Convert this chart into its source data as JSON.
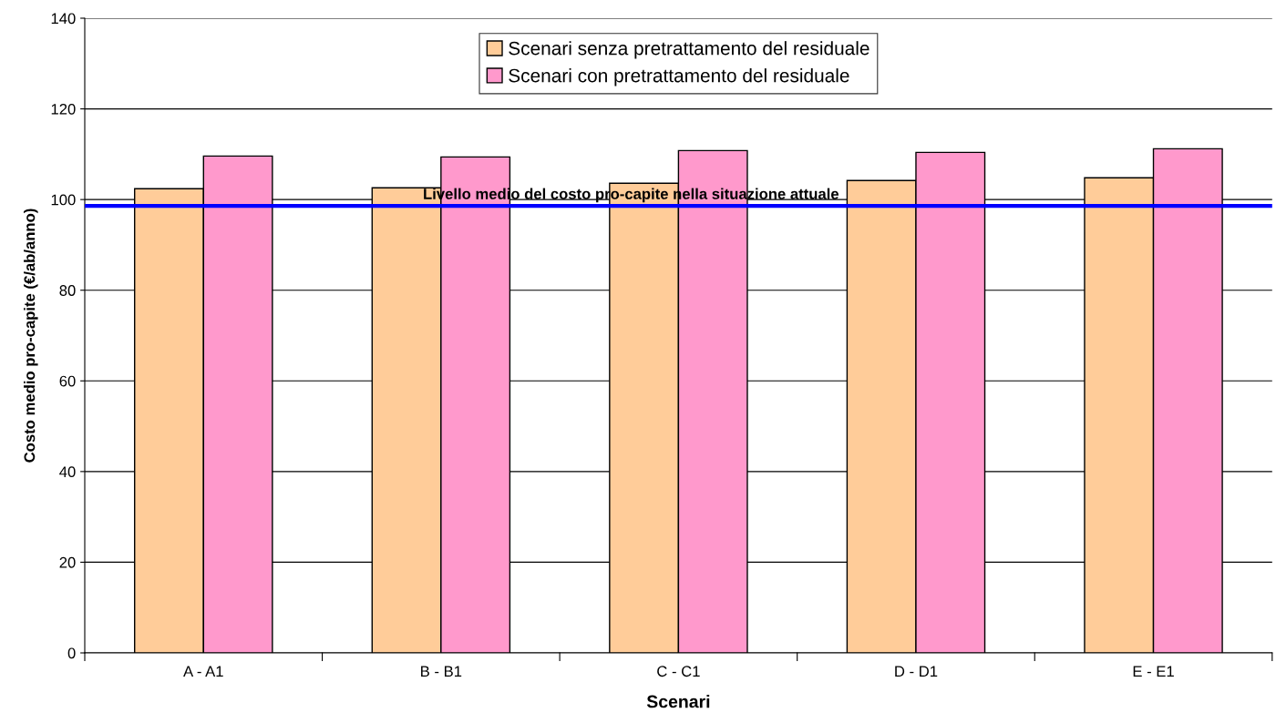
{
  "chart_data": {
    "type": "bar",
    "xlabel": "Scenari",
    "ylabel": "Costo medio pro-capite (€/ab/anno)",
    "categories": [
      "A - A1",
      "B - B1",
      "C - C1",
      "D - D1",
      "E - E1"
    ],
    "series": [
      {
        "name": "Scenari senza pretrattamento del residuale",
        "color": "#ffcc99",
        "values": [
          102.4,
          102.6,
          103.6,
          104.2,
          104.8
        ]
      },
      {
        "name": "Scenari con pretrattamento del residuale",
        "color": "#ff99cc",
        "values": [
          109.6,
          109.4,
          110.8,
          110.4,
          111.2
        ]
      }
    ],
    "ylim": [
      0,
      140
    ],
    "yticks": [
      0,
      20,
      40,
      60,
      80,
      100,
      120,
      140
    ],
    "grid": "y",
    "legend": "top",
    "ref_lines": [
      {
        "axis": "y",
        "value": 98.6,
        "label": "Livello medio del costo pro-capite nella situazione attuale",
        "color": "#0000ff"
      }
    ]
  }
}
